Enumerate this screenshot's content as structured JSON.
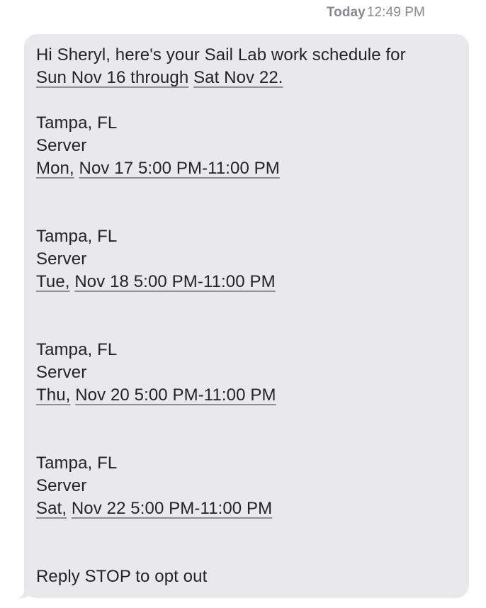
{
  "header": {
    "date_label": "Today",
    "time_label": "12:49 PM"
  },
  "message": {
    "greeting": "Hi Sheryl, here's your Sail Lab work schedule for",
    "date_range_start": "Sun Nov 16 through",
    "date_range_end": "Sat Nov 22.",
    "shifts": [
      {
        "location": "Tampa, FL",
        "role": "Server",
        "day": "Mon,",
        "datetime": "Nov 17 5:00 PM-11:00 PM"
      },
      {
        "location": "Tampa, FL",
        "role": "Server",
        "day": "Tue,",
        "datetime": "Nov 18 5:00 PM-11:00 PM"
      },
      {
        "location": "Tampa, FL",
        "role": "Server",
        "day": "Thu,",
        "datetime": "Nov 20 5:00 PM-11:00 PM"
      },
      {
        "location": "Tampa, FL",
        "role": "Server",
        "day": "Sat,",
        "datetime": "Nov 22 5:00 PM-11:00 PM"
      }
    ],
    "footer": "Reply STOP to opt out"
  },
  "colors": {
    "background": "#FFFFFF",
    "bubble": "#E9E9EB",
    "text": "#242426",
    "timestamp": "#8A8A8E",
    "link_underline": "#8E8E93"
  }
}
